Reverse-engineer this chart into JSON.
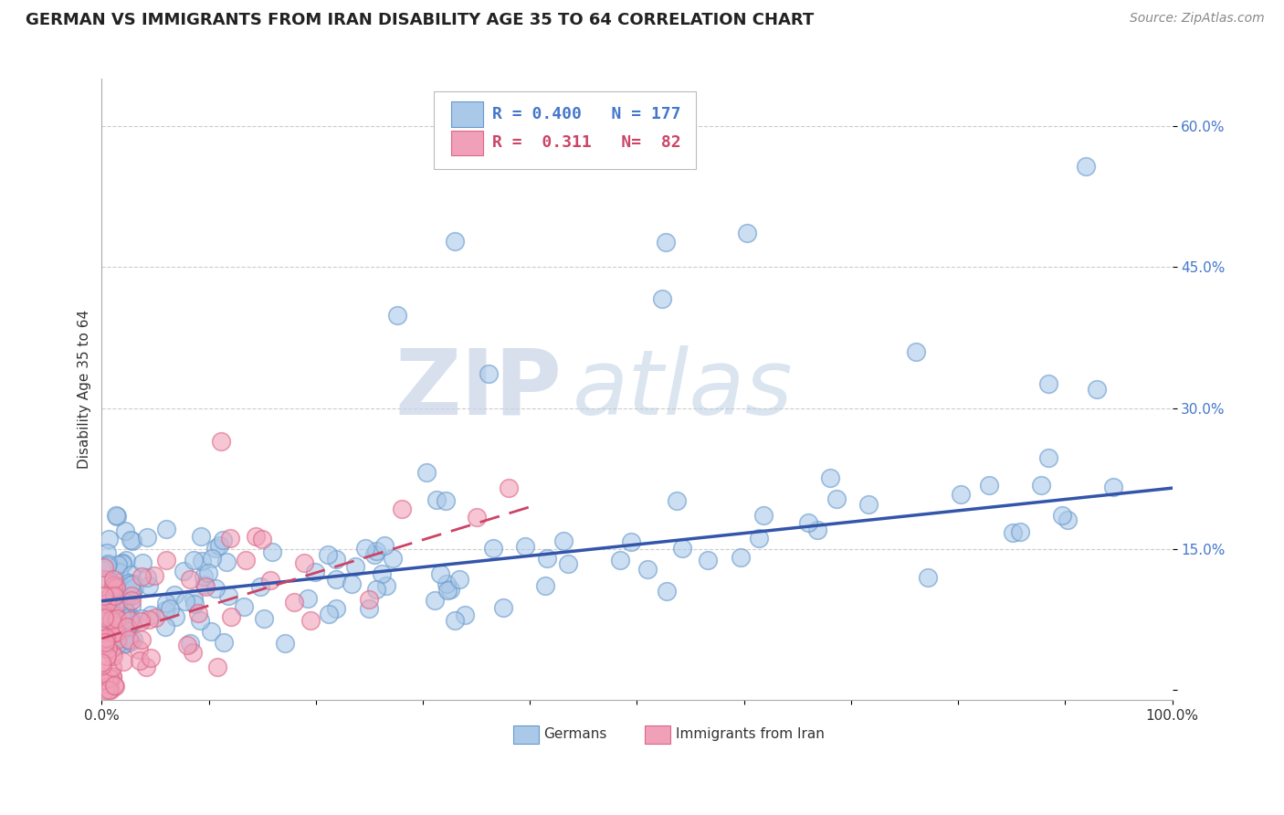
{
  "title": "GERMAN VS IMMIGRANTS FROM IRAN DISABILITY AGE 35 TO 64 CORRELATION CHART",
  "source_text": "Source: ZipAtlas.com",
  "ylabel": "Disability Age 35 to 64",
  "xlim": [
    0,
    1.0
  ],
  "ylim": [
    -0.01,
    0.65
  ],
  "yticks": [
    0.0,
    0.15,
    0.3,
    0.45,
    0.6
  ],
  "ytick_labels": [
    "",
    "15.0%",
    "30.0%",
    "45.0%",
    "60.0%"
  ],
  "xticks": [
    0.0,
    0.1,
    0.2,
    0.3,
    0.4,
    0.5,
    0.6,
    0.7,
    0.8,
    0.9,
    1.0
  ],
  "xtick_labels": [
    "0.0%",
    "",
    "",
    "",
    "",
    "",
    "",
    "",
    "",
    "",
    "100.0%"
  ],
  "blue_fill": "#aac8e8",
  "blue_edge": "#6699cc",
  "pink_fill": "#f0a0b8",
  "pink_edge": "#dd6688",
  "trend_blue": "#3355aa",
  "trend_pink": "#cc4466",
  "legend_R_blue": "0.400",
  "legend_N_blue": "177",
  "legend_R_pink": "0.311",
  "legend_N_pink": "82",
  "watermark_zip": "ZIP",
  "watermark_atlas": "atlas",
  "title_fontsize": 13,
  "axis_label_fontsize": 11,
  "tick_fontsize": 11,
  "source_fontsize": 10,
  "blue_trend_x0": 0.0,
  "blue_trend_y0": 0.095,
  "blue_trend_x1": 1.0,
  "blue_trend_y1": 0.215,
  "pink_trend_x0": 0.0,
  "pink_trend_y0": 0.055,
  "pink_trend_x1": 0.4,
  "pink_trend_y1": 0.195
}
